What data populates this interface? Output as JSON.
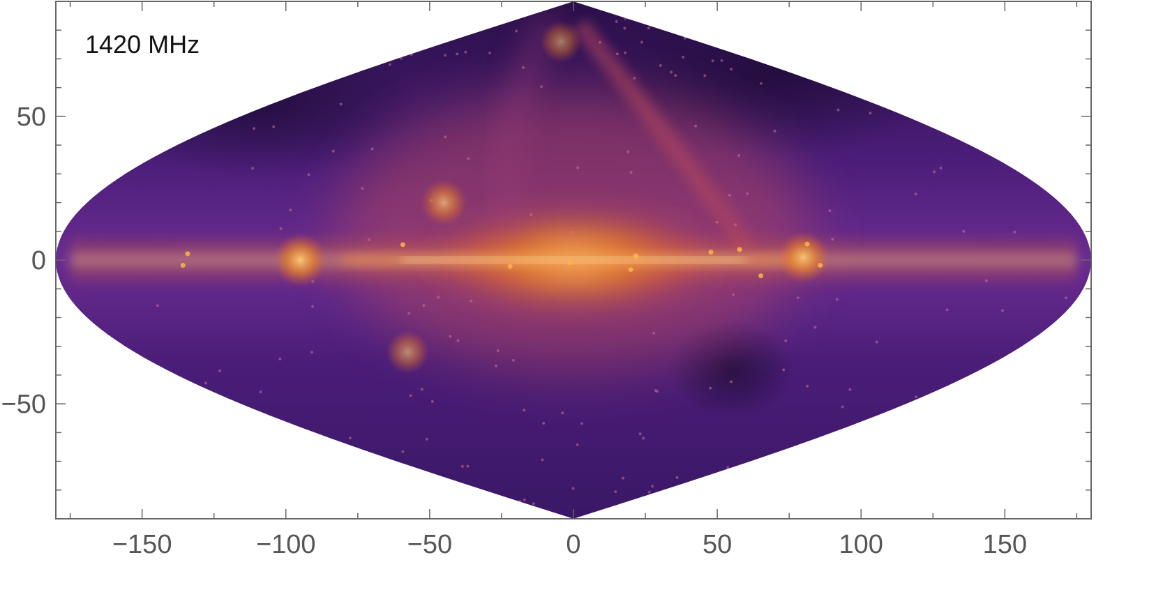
{
  "chart_data": {
    "type": "heatmap",
    "projection": "sinusoidal",
    "annotation": "1420 MHz",
    "xlabel": "",
    "ylabel": "",
    "xlim": [
      -180,
      180
    ],
    "ylim": [
      -90,
      90
    ],
    "x_ticks": [
      {
        "value": -150,
        "label": "−150"
      },
      {
        "value": -100,
        "label": "−100"
      },
      {
        "value": -50,
        "label": "−50"
      },
      {
        "value": 0,
        "label": "0"
      },
      {
        "value": 50,
        "label": "50"
      },
      {
        "value": 100,
        "label": "100"
      },
      {
        "value": 150,
        "label": "150"
      }
    ],
    "y_ticks": [
      {
        "value": 50,
        "label": "50"
      },
      {
        "value": 0,
        "label": "0"
      },
      {
        "value": -50,
        "label": "−50"
      }
    ],
    "colormap": [
      "#1c0b33",
      "#3d1660",
      "#5e2a8c",
      "#7a3593",
      "#b5465e",
      "#e0602a",
      "#f7921a",
      "#ffd27a"
    ],
    "features": [
      {
        "name": "galactic-plane",
        "lon": [
          -175,
          175
        ],
        "lat": 0,
        "intensity": 1.0
      },
      {
        "name": "source",
        "lon": -95,
        "lat": 0,
        "intensity": 0.9
      },
      {
        "name": "source",
        "lon": 80,
        "lat": 1,
        "intensity": 0.85
      },
      {
        "name": "source",
        "lon": -48,
        "lat": 20,
        "intensity": 0.7
      },
      {
        "name": "source",
        "lon": -68,
        "lat": -32,
        "intensity": 0.6
      },
      {
        "name": "source",
        "lon": -18,
        "lat": 76,
        "intensity": 0.55
      },
      {
        "name": "north-polar-spur",
        "lon": [
          0,
          40
        ],
        "lat": [
          10,
          75
        ],
        "intensity": 0.5
      },
      {
        "name": "cold-spot",
        "lon": [
          45,
          65
        ],
        "lat": [
          -45,
          -25
        ],
        "intensity": 0.05
      }
    ]
  }
}
